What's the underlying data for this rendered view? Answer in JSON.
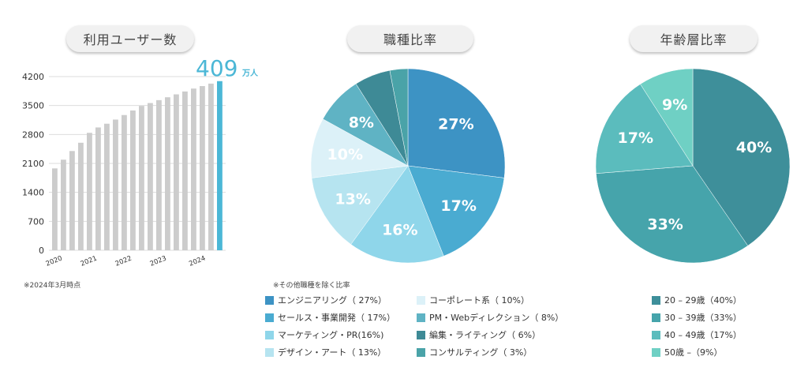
{
  "chart_data": [
    {
      "type": "bar",
      "title": "利用ユーザー数",
      "highlight_value": "409",
      "highlight_unit": "万人",
      "ylim": [
        0,
        4200
      ],
      "yticks": [
        "4200",
        "3500",
        "2800",
        "2100",
        "1400",
        "700",
        "0"
      ],
      "ytick_values": [
        4200,
        3500,
        2800,
        2100,
        1400,
        700,
        0
      ],
      "xtick_labels": [
        "2020",
        "2021",
        "2022",
        "2023",
        "2024"
      ],
      "values": [
        1980,
        2190,
        2400,
        2600,
        2840,
        2970,
        3060,
        3160,
        3270,
        3380,
        3490,
        3560,
        3630,
        3700,
        3770,
        3840,
        3910,
        3970,
        4030,
        4090
      ],
      "bar_color": "#cccccc",
      "highlight_color": "#4bb7d6",
      "note": "※2024年3月時点"
    },
    {
      "type": "pie",
      "title": "職種比率",
      "note": "※その他職種を除く比率",
      "slices": [
        {
          "label": "エンジニアリング（ 27%）",
          "value": 27,
          "display": "27%",
          "color": "#3d93c4",
          "text_color": "#ffffff"
        },
        {
          "label": "セールス・事業開発（ 17%）",
          "value": 17,
          "display": "17%",
          "color": "#4aabd1",
          "text_color": "#ffffff"
        },
        {
          "label": "マーケティング・PR(16%)",
          "value": 16,
          "display": "16%",
          "color": "#8fd6ea",
          "text_color": "#ffffff"
        },
        {
          "label": "デザイン・アート（ 13%）",
          "value": 13,
          "display": "13%",
          "color": "#b6e4f0",
          "text_color": "#ffffff"
        },
        {
          "label": "コーポレート系（ 10%）",
          "value": 10,
          "display": "10%",
          "color": "#dcf1f8",
          "text_color": "#ffffff"
        },
        {
          "label": "PM・Webディレクション（ 8%）",
          "value": 8,
          "display": "8%",
          "color": "#5fb3c4",
          "text_color": "#ffffff"
        },
        {
          "label": "編集・ライティング（ 6%）",
          "value": 6,
          "display": "",
          "color": "#3e8a96",
          "text_color": "#ffffff"
        },
        {
          "label": "コンサルティング（ 3%）",
          "value": 3,
          "display": "",
          "color": "#4aa3a8",
          "text_color": "#ffffff"
        }
      ]
    },
    {
      "type": "pie",
      "title": "年齢層比率",
      "slices": [
        {
          "label": "20 – 29歳（40%）",
          "value": 40,
          "display": "40%",
          "color": "#3e8f9a",
          "text_color": "#ffffff"
        },
        {
          "label": "30 – 39歳（33%）",
          "value": 33,
          "display": "33%",
          "color": "#46a4ab",
          "text_color": "#ffffff"
        },
        {
          "label": "40 – 49歳（17%）",
          "value": 17,
          "display": "17%",
          "color": "#5bbcbd",
          "text_color": "#ffffff"
        },
        {
          "label": "50歳 –（9%）",
          "value": 9,
          "display": "9%",
          "color": "#6fd0c4",
          "text_color": "#ffffff"
        }
      ]
    }
  ]
}
